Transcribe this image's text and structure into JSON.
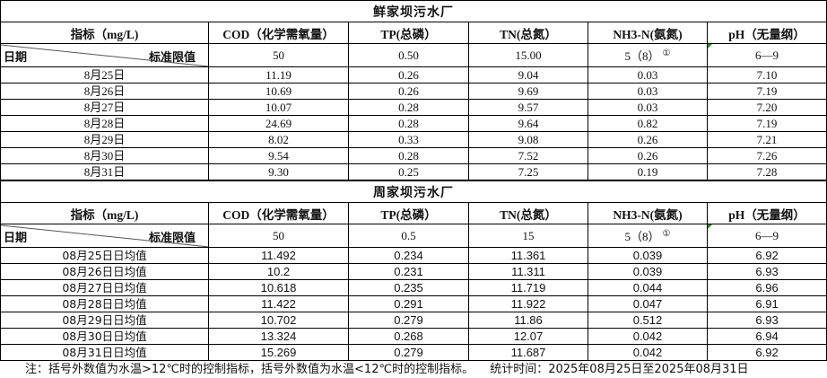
{
  "columns": [
    "指标（mg/L)",
    "COD（化学需氧量）",
    "TP(总磷）",
    "TN(总氮）",
    "NH3-N(氨氮)",
    "pH（无量纲）"
  ],
  "diag": {
    "left": "日期",
    "right": "标准限值"
  },
  "limit_note": "①",
  "sections": [
    {
      "title": "鲜家坝污水厂",
      "limits": [
        "50",
        "0.50",
        "15.00",
        "5（8）",
        "6—9"
      ],
      "rows": [
        [
          "8月25日",
          "11.19",
          "0.26",
          "9.04",
          "0.03",
          "7.10"
        ],
        [
          "8月26日",
          "10.69",
          "0.26",
          "9.69",
          "0.03",
          "7.19"
        ],
        [
          "8月27日",
          "10.07",
          "0.28",
          "9.57",
          "0.03",
          "7.20"
        ],
        [
          "8月28日",
          "24.69",
          "0.28",
          "9.64",
          "0.82",
          "7.19"
        ],
        [
          "8月29日",
          "8.02",
          "0.33",
          "9.08",
          "0.26",
          "7.21"
        ],
        [
          "8月30日",
          "9.54",
          "0.28",
          "7.52",
          "0.26",
          "7.26"
        ],
        [
          "8月31日",
          "9.30",
          "0.25",
          "7.25",
          "0.19",
          "7.28"
        ]
      ]
    },
    {
      "title": "周家坝污水厂",
      "limits": [
        "50",
        "0.5",
        "15",
        "5（8）",
        "6—9"
      ],
      "rows": [
        [
          "08月25日日均值",
          "11.492",
          "0.234",
          "11.361",
          "0.039",
          "6.92"
        ],
        [
          "08月26日日均值",
          "10.2",
          "0.231",
          "11.311",
          "0.039",
          "6.93"
        ],
        [
          "08月27日日均值",
          "10.618",
          "0.235",
          "11.719",
          "0.044",
          "6.96"
        ],
        [
          "08月28日日均值",
          "11.422",
          "0.291",
          "11.922",
          "0.047",
          "6.91"
        ],
        [
          "08月29日日均值",
          "10.702",
          "0.279",
          "11.86",
          "0.512",
          "6.93"
        ],
        [
          "08月30日日均值",
          "13.324",
          "0.268",
          "12.07",
          "0.042",
          "6.94"
        ],
        [
          "08月31日日均值",
          "15.269",
          "0.279",
          "11.687",
          "0.042",
          "6.92"
        ]
      ]
    }
  ],
  "footer": {
    "note": "注：括号外数值为水温>12℃时的控制指标，括号外数值为水温<12℃时的控制指标。",
    "period": "统计时间：2025年08月25日至2025年08月31日"
  }
}
